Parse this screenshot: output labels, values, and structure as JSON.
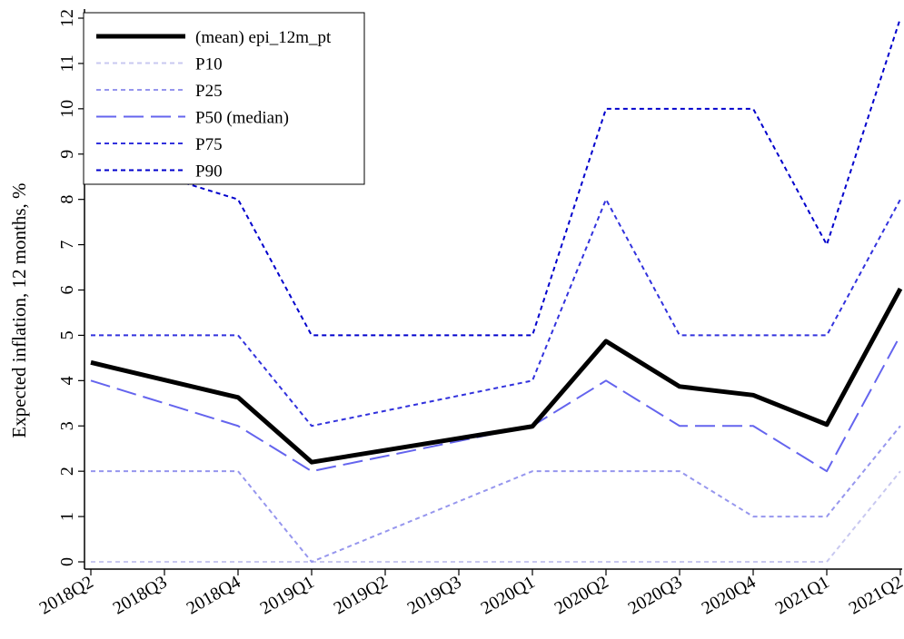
{
  "chart_data": {
    "type": "line",
    "title": "",
    "xlabel": "",
    "ylabel": "Expected inflation, 12 months, %",
    "ylim": [
      0,
      12
    ],
    "yticks": [
      0,
      1,
      2,
      3,
      4,
      5,
      6,
      7,
      8,
      9,
      10,
      11,
      12
    ],
    "grid": false,
    "legend_position": "top-left",
    "categories": [
      "2018Q2",
      "2018Q3",
      "2018Q4",
      "2019Q1",
      "2019Q2",
      "2019Q3",
      "2020Q1",
      "2020Q2",
      "2020Q3",
      "2020Q4",
      "2021Q1",
      "2021Q2"
    ],
    "series": [
      {
        "name": "(mean) epi_12m_pt",
        "color": "#000000",
        "style": "solid-thick",
        "values": [
          4.4,
          null,
          3.63,
          2.2,
          null,
          null,
          2.99,
          4.87,
          3.87,
          3.68,
          3.03,
          6.03
        ]
      },
      {
        "name": "P10",
        "color": "#c8c8f0",
        "style": "short-dash",
        "values": [
          0,
          null,
          0,
          0,
          null,
          null,
          0,
          0,
          0,
          0,
          0,
          2
        ]
      },
      {
        "name": "P25",
        "color": "#9696ee",
        "style": "short-dash",
        "values": [
          2,
          null,
          2,
          0,
          null,
          null,
          2,
          2,
          2,
          1,
          1,
          3
        ]
      },
      {
        "name": "P50 (median)",
        "color": "#6464ee",
        "style": "long-dash",
        "values": [
          4,
          null,
          3,
          2,
          null,
          null,
          3,
          4,
          3,
          3,
          2,
          5
        ]
      },
      {
        "name": "P75",
        "color": "#3232dd",
        "style": "short-dash",
        "values": [
          5,
          null,
          5,
          3,
          null,
          null,
          4,
          8,
          5,
          5,
          5,
          8
        ]
      },
      {
        "name": "P90",
        "color": "#0000cc",
        "style": "short-dash",
        "values": [
          9,
          null,
          8,
          5,
          null,
          null,
          5,
          10,
          10,
          10,
          7,
          12
        ]
      }
    ]
  }
}
